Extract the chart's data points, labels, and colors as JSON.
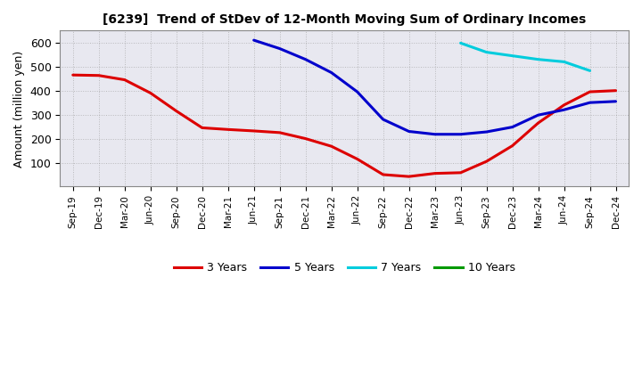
{
  "title": "[6239]  Trend of StDev of 12-Month Moving Sum of Ordinary Incomes",
  "ylabel": "Amount (million yen)",
  "background_color": "#ffffff",
  "plot_bg_color": "#e8e8f0",
  "grid_color": "#999999",
  "ylim": [
    0,
    650
  ],
  "yticks": [
    100,
    200,
    300,
    400,
    500,
    600
  ],
  "x_labels": [
    "Sep-19",
    "Dec-19",
    "Mar-20",
    "Jun-20",
    "Sep-20",
    "Dec-20",
    "Mar-21",
    "Jun-21",
    "Sep-21",
    "Dec-21",
    "Mar-22",
    "Jun-22",
    "Sep-22",
    "Dec-22",
    "Mar-23",
    "Jun-23",
    "Sep-23",
    "Dec-23",
    "Mar-24",
    "Jun-24",
    "Sep-24",
    "Dec-24"
  ],
  "series": {
    "3 Years": {
      "color": "#dd0000",
      "data_x": [
        0,
        1,
        2,
        3,
        4,
        5,
        6,
        7,
        8,
        9,
        10,
        11,
        12,
        13,
        14,
        15,
        16,
        17,
        18,
        19,
        20,
        21
      ],
      "data_y": [
        465,
        463,
        445,
        390,
        315,
        245,
        238,
        232,
        225,
        200,
        168,
        115,
        50,
        42,
        55,
        58,
        105,
        170,
        265,
        340,
        395,
        400
      ]
    },
    "5 Years": {
      "color": "#0000cc",
      "data_x": [
        7,
        8,
        9,
        10,
        11,
        12,
        13,
        14,
        15,
        16,
        17,
        18,
        19,
        20,
        21
      ],
      "data_y": [
        610,
        575,
        530,
        475,
        395,
        280,
        230,
        218,
        218,
        228,
        248,
        298,
        320,
        350,
        355
      ]
    },
    "7 Years": {
      "color": "#00ccdd",
      "data_x": [
        15,
        16,
        17,
        18,
        19,
        20
      ],
      "data_y": [
        598,
        560,
        545,
        530,
        520,
        483
      ]
    },
    "10 Years": {
      "color": "#009900",
      "data_x": [],
      "data_y": []
    }
  },
  "legend_order": [
    "3 Years",
    "5 Years",
    "7 Years",
    "10 Years"
  ]
}
